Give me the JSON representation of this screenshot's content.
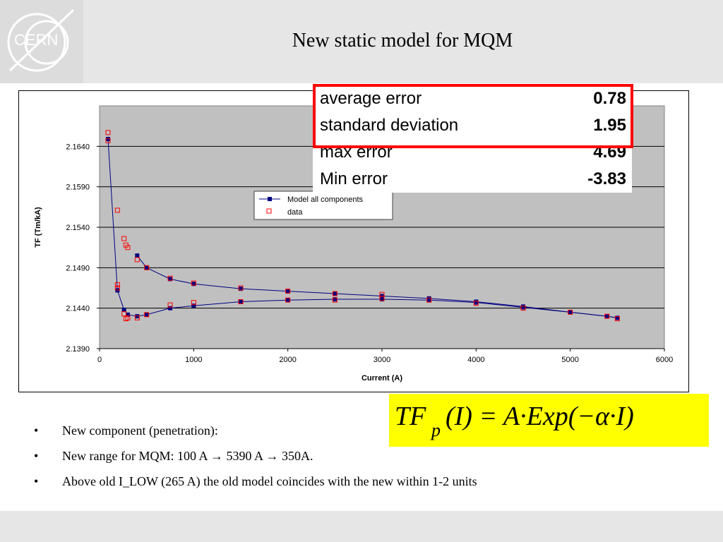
{
  "slide": {
    "title": "New static model for MQM",
    "logo_text": "CERN"
  },
  "stats": [
    {
      "label": "average error",
      "value": "0.78"
    },
    {
      "label": "standard deviation",
      "value": "1.95"
    },
    {
      "label": "max error",
      "value": "4.69"
    },
    {
      "label": "Min error",
      "value": "-3.83"
    }
  ],
  "formula": {
    "lhs_main": "TF",
    "lhs_sub": "p",
    "rhs": "(I) = A·Exp(−α·I)"
  },
  "bullets": [
    {
      "marker": "•",
      "text": "New component (penetration):"
    },
    {
      "marker": "•",
      "text": "New range for MQM: 100 A → 5390 A → 350A."
    },
    {
      "marker": "•",
      "text": "Above old I_LOW (265 A) the old model coincides with the new within 1-2 units"
    }
  ],
  "colors": {
    "plot_bg": "#c0c0c0",
    "model": "#000080",
    "data": "#ff0000",
    "stats_border": "#ff0000",
    "formula_bg": "#ffff00"
  },
  "chart_data": {
    "type": "scatter",
    "xlabel": "Current (A)",
    "ylabel": "TF (Tm/kA)",
    "xlim": [
      0,
      6000
    ],
    "ylim": [
      2.139,
      2.169
    ],
    "xticks": [
      "0",
      "1000",
      "2000",
      "3000",
      "4000",
      "5000",
      "6000"
    ],
    "yticks": [
      "2.1390",
      "2.1440",
      "2.1490",
      "2.1540",
      "2.1590",
      "2.1640"
    ],
    "legend": [
      "Model all components",
      "data"
    ],
    "legend_position": "center",
    "grid": true,
    "series": [
      {
        "name": "Model all components",
        "marker": "filled-square",
        "branches": [
          {
            "x": [
              90,
              190,
              260,
              300,
              400,
              500,
              750,
              1000,
              1500,
              2000,
              2500,
              3000,
              3500,
              4000,
              4500,
              5000,
              5390,
              5500
            ],
            "y": [
              2.1649,
              2.1462,
              2.1438,
              2.1432,
              2.143,
              2.1432,
              2.144,
              2.1443,
              2.1448,
              2.145,
              2.1451,
              2.1451,
              2.145,
              2.1447,
              2.1441,
              2.1435,
              2.143,
              2.1428
            ]
          },
          {
            "x": [
              400,
              500,
              750,
              1000,
              1500,
              2000,
              2500,
              3000,
              3500,
              4000,
              4500,
              5000,
              5390,
              5500
            ],
            "y": [
              2.1505,
              2.149,
              2.1476,
              2.147,
              2.1464,
              2.1461,
              2.1458,
              2.1455,
              2.1452,
              2.1448,
              2.1442,
              2.1435,
              2.143,
              2.1428
            ]
          }
        ]
      },
      {
        "name": "data",
        "marker": "hollow-square",
        "x": [
          90,
          90,
          190,
          190,
          190,
          260,
          280,
          300,
          260,
          280,
          300,
          400,
          400,
          500,
          500,
          750,
          750,
          1000,
          1000,
          1500,
          1500,
          2000,
          2000,
          2500,
          2500,
          3000,
          3000,
          3500,
          4000,
          4500,
          5000,
          5390,
          5500
        ],
        "y": [
          2.1657,
          2.1647,
          2.1561,
          2.1469,
          2.1465,
          2.1526,
          2.1518,
          2.1515,
          2.1433,
          2.1427,
          2.1428,
          2.15,
          2.1428,
          2.149,
          2.1432,
          2.1477,
          2.1444,
          2.1471,
          2.1447,
          2.1465,
          2.1448,
          2.1461,
          2.145,
          2.1458,
          2.145,
          2.1457,
          2.1452,
          2.145,
          2.1446,
          2.144,
          2.1435,
          2.143,
          2.1427
        ]
      }
    ]
  }
}
